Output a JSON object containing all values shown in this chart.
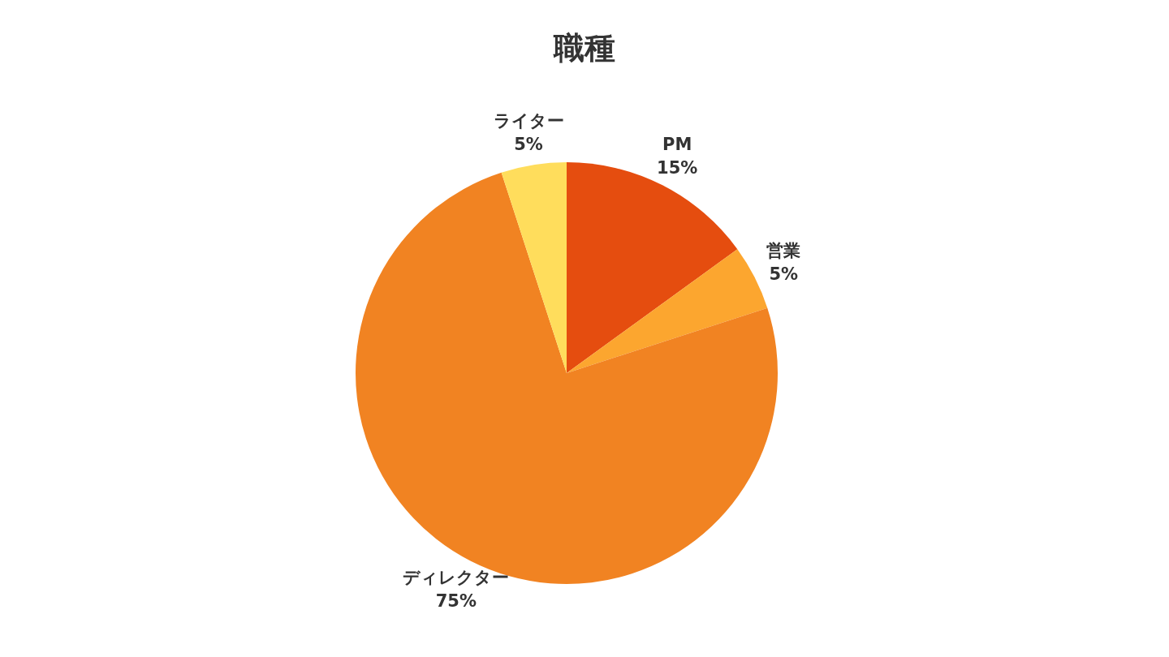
{
  "chart_data": {
    "type": "pie",
    "title": "職種",
    "categories": [
      "PM",
      "営業",
      "ディレクター",
      "ライター"
    ],
    "values": [
      15,
      5,
      75,
      5
    ],
    "colors": [
      "#e54d0f",
      "#fca62f",
      "#f18322",
      "#ffdd5c"
    ],
    "value_labels": [
      "15%",
      "5%",
      "75%",
      "5%"
    ]
  }
}
